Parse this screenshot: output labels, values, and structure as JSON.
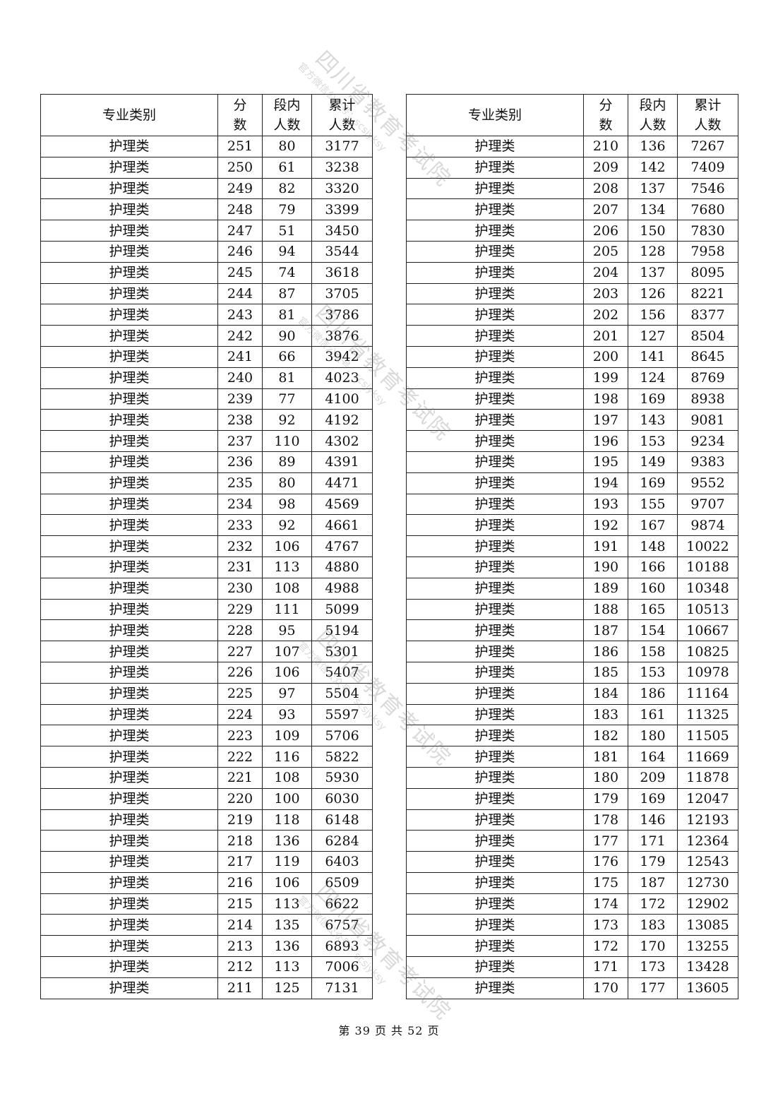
{
  "headers": {
    "category": "专业类别",
    "score": "分数",
    "count": "段内人数",
    "cumulative": "累计人数"
  },
  "category": "护理类",
  "left_rows": [
    [
      251,
      80,
      3177
    ],
    [
      250,
      61,
      3238
    ],
    [
      249,
      82,
      3320
    ],
    [
      248,
      79,
      3399
    ],
    [
      247,
      51,
      3450
    ],
    [
      246,
      94,
      3544
    ],
    [
      245,
      74,
      3618
    ],
    [
      244,
      87,
      3705
    ],
    [
      243,
      81,
      3786
    ],
    [
      242,
      90,
      3876
    ],
    [
      241,
      66,
      3942
    ],
    [
      240,
      81,
      4023
    ],
    [
      239,
      77,
      4100
    ],
    [
      238,
      92,
      4192
    ],
    [
      237,
      110,
      4302
    ],
    [
      236,
      89,
      4391
    ],
    [
      235,
      80,
      4471
    ],
    [
      234,
      98,
      4569
    ],
    [
      233,
      92,
      4661
    ],
    [
      232,
      106,
      4767
    ],
    [
      231,
      113,
      4880
    ],
    [
      230,
      108,
      4988
    ],
    [
      229,
      111,
      5099
    ],
    [
      228,
      95,
      5194
    ],
    [
      227,
      107,
      5301
    ],
    [
      226,
      106,
      5407
    ],
    [
      225,
      97,
      5504
    ],
    [
      224,
      93,
      5597
    ],
    [
      223,
      109,
      5706
    ],
    [
      222,
      116,
      5822
    ],
    [
      221,
      108,
      5930
    ],
    [
      220,
      100,
      6030
    ],
    [
      219,
      118,
      6148
    ],
    [
      218,
      136,
      6284
    ],
    [
      217,
      119,
      6403
    ],
    [
      216,
      106,
      6509
    ],
    [
      215,
      113,
      6622
    ],
    [
      214,
      135,
      6757
    ],
    [
      213,
      136,
      6893
    ],
    [
      212,
      113,
      7006
    ],
    [
      211,
      125,
      7131
    ]
  ],
  "right_rows": [
    [
      210,
      136,
      7267
    ],
    [
      209,
      142,
      7409
    ],
    [
      208,
      137,
      7546
    ],
    [
      207,
      134,
      7680
    ],
    [
      206,
      150,
      7830
    ],
    [
      205,
      128,
      7958
    ],
    [
      204,
      137,
      8095
    ],
    [
      203,
      126,
      8221
    ],
    [
      202,
      156,
      8377
    ],
    [
      201,
      127,
      8504
    ],
    [
      200,
      141,
      8645
    ],
    [
      199,
      124,
      8769
    ],
    [
      198,
      169,
      8938
    ],
    [
      197,
      143,
      9081
    ],
    [
      196,
      153,
      9234
    ],
    [
      195,
      149,
      9383
    ],
    [
      194,
      169,
      9552
    ],
    [
      193,
      155,
      9707
    ],
    [
      192,
      167,
      9874
    ],
    [
      191,
      148,
      10022
    ],
    [
      190,
      166,
      10188
    ],
    [
      189,
      160,
      10348
    ],
    [
      188,
      165,
      10513
    ],
    [
      187,
      154,
      10667
    ],
    [
      186,
      158,
      10825
    ],
    [
      185,
      153,
      10978
    ],
    [
      184,
      186,
      11164
    ],
    [
      183,
      161,
      11325
    ],
    [
      182,
      180,
      11505
    ],
    [
      181,
      164,
      11669
    ],
    [
      180,
      209,
      11878
    ],
    [
      179,
      169,
      12047
    ],
    [
      178,
      146,
      12193
    ],
    [
      177,
      171,
      12364
    ],
    [
      176,
      179,
      12543
    ],
    [
      175,
      187,
      12730
    ],
    [
      174,
      172,
      12902
    ],
    [
      173,
      183,
      13085
    ],
    [
      172,
      170,
      13255
    ],
    [
      171,
      173,
      13428
    ],
    [
      170,
      177,
      13605
    ]
  ],
  "footer": "第 39 页 共 52 页",
  "watermark": {
    "title": "四川省教育考试院",
    "subtitle": "官方微信公众号：scsjyksy"
  }
}
